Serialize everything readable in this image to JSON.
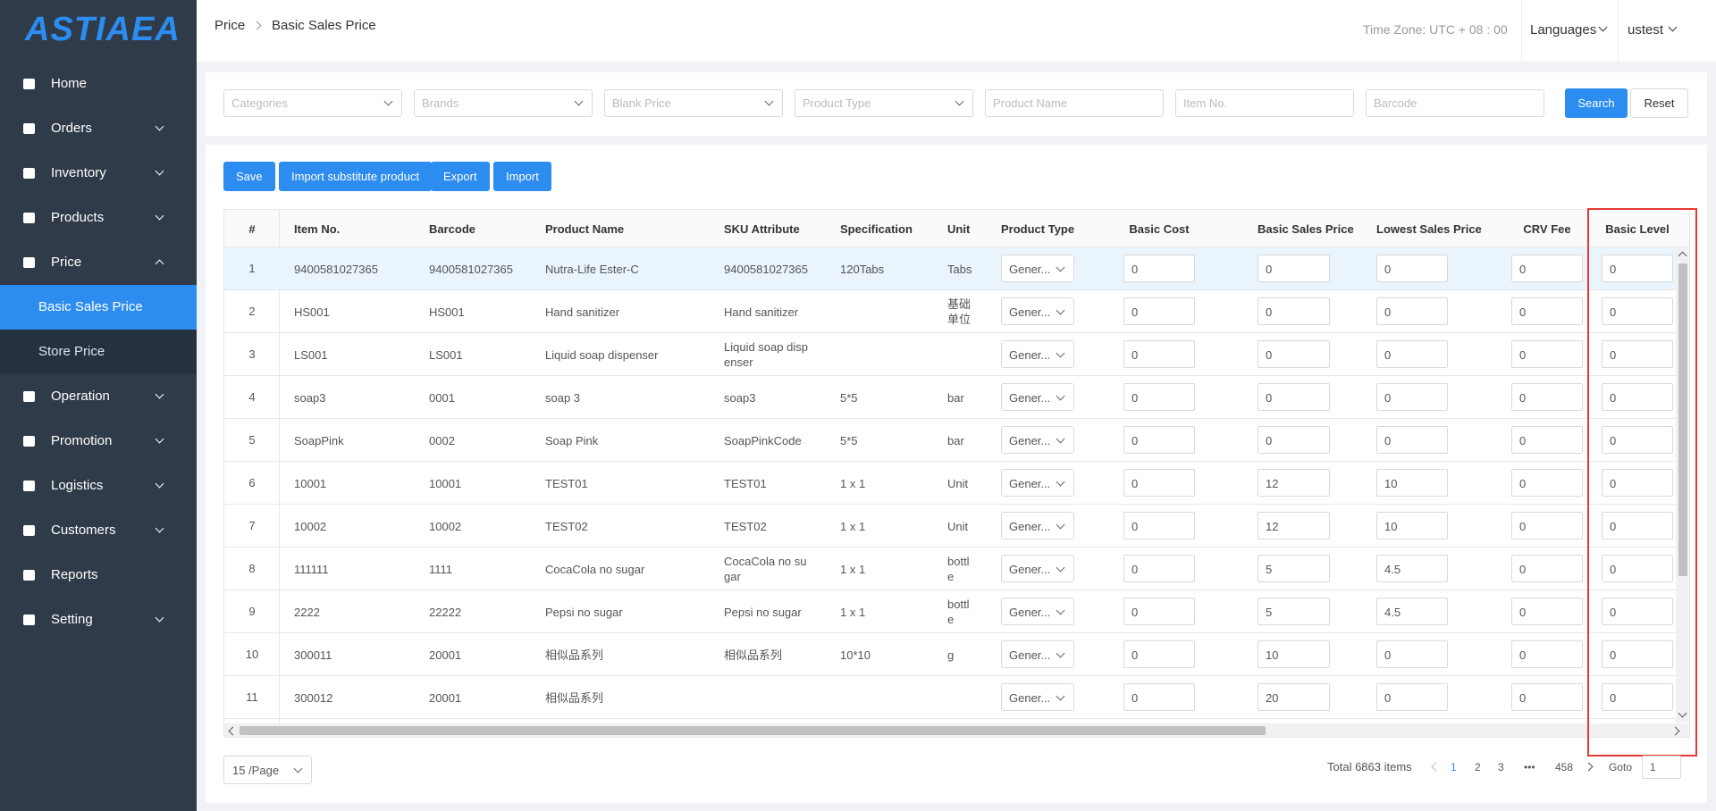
{
  "logo": "Astiaea",
  "header": {
    "breadcrumb": [
      "Price",
      "Basic Sales Price"
    ],
    "timezone": "Time Zone: UTC + 08 : 00",
    "language": "Languages",
    "user": "ustest"
  },
  "sidebar": {
    "menu": [
      {
        "label": "Home"
      },
      {
        "label": "Orders",
        "submenu": true
      },
      {
        "label": "Inventory",
        "submenu": true
      },
      {
        "label": "Products",
        "submenu": true
      },
      {
        "label": "Price",
        "submenu": true,
        "open": true,
        "children": [
          "Basic Sales Price",
          "Store Price"
        ],
        "selected_child": 0
      },
      {
        "label": "Operation",
        "submenu": true
      },
      {
        "label": "Promotion",
        "submenu": true
      },
      {
        "label": "Logistics",
        "submenu": true
      },
      {
        "label": "Customers",
        "submenu": true
      },
      {
        "label": "Reports"
      },
      {
        "label": "Setting",
        "submenu": true
      }
    ]
  },
  "filters": {
    "selects": [
      "Categories",
      "Brands",
      "Blank Price",
      "Product Type"
    ],
    "inputs": [
      "Product Name",
      "Item No.",
      "Barcode"
    ],
    "search": "Search",
    "reset": "Reset"
  },
  "toolbar": [
    "Save",
    "Import substitute product",
    "Export",
    "Import"
  ],
  "table": {
    "columns": [
      "#",
      "Item No.",
      "Barcode",
      "Product Name",
      "SKU Attribute",
      "Specification",
      "Unit",
      "Product Type",
      "Basic Cost",
      "Basic Sales Price",
      "Lowest Sales Price",
      "CRV Fee",
      "Basic Level"
    ],
    "rows": [
      [
        1,
        "9400581027365",
        "9400581027365",
        "Nutra-Life Ester-C",
        "9400581027365",
        "120Tabs",
        "Tabs",
        "Gener...",
        0,
        0,
        0,
        0,
        0
      ],
      [
        2,
        "HS001",
        "HS001",
        "Hand sanitizer",
        "Hand sanitizer",
        null,
        "基础单位",
        "Gener...",
        0,
        0,
        0,
        0,
        0
      ],
      [
        3,
        "LS001",
        "LS001",
        "Liquid soap dispenser",
        "Liquid soap dispenser",
        null,
        null,
        "Gener...",
        0,
        0,
        0,
        0,
        0
      ],
      [
        4,
        "soap3",
        "0001",
        "soap 3",
        "soap3",
        "5*5",
        "bar",
        "Gener...",
        0,
        0,
        0,
        0,
        0
      ],
      [
        5,
        "SoapPink",
        "0002",
        "Soap Pink",
        "SoapPinkCode",
        "5*5",
        "bar",
        "Gener...",
        0,
        0,
        0,
        0,
        0
      ],
      [
        6,
        "10001",
        "10001",
        "TEST01",
        "TEST01",
        "1 x 1",
        "Unit",
        "Gener...",
        0,
        12,
        10,
        0,
        0
      ],
      [
        7,
        "10002",
        "10002",
        "TEST02",
        "TEST02",
        "1 x 1",
        "Unit",
        "Gener...",
        0,
        12,
        10,
        0,
        0
      ],
      [
        8,
        "111111",
        "1111",
        "CocaCola no sugar",
        "CocaCola no sugar",
        "1 x 1",
        "bottle",
        "Gener...",
        0,
        5,
        4.5,
        0,
        0
      ],
      [
        9,
        "2222",
        "22222",
        "Pepsi no sugar",
        "Pepsi no sugar",
        "1 x 1",
        "bottle",
        "Gener...",
        0,
        5,
        4.5,
        0,
        0
      ],
      [
        10,
        "300011",
        "20001",
        "相似品系列",
        "相似品系列",
        "10*10",
        "g",
        "Gener...",
        0,
        10,
        0,
        0,
        0
      ],
      [
        11,
        "300012",
        "20001",
        "相似品系列",
        null,
        null,
        null,
        "Gener...",
        0,
        20,
        0,
        0,
        0
      ]
    ],
    "highlight_row": 0,
    "highlight_column": 12
  },
  "pagination": {
    "page_size": "15 /Page",
    "total": "Total 6863 items",
    "pages": [
      1,
      2,
      3,
      "•••",
      458
    ],
    "current": 0,
    "goto": "Goto",
    "goto_value": 1
  }
}
